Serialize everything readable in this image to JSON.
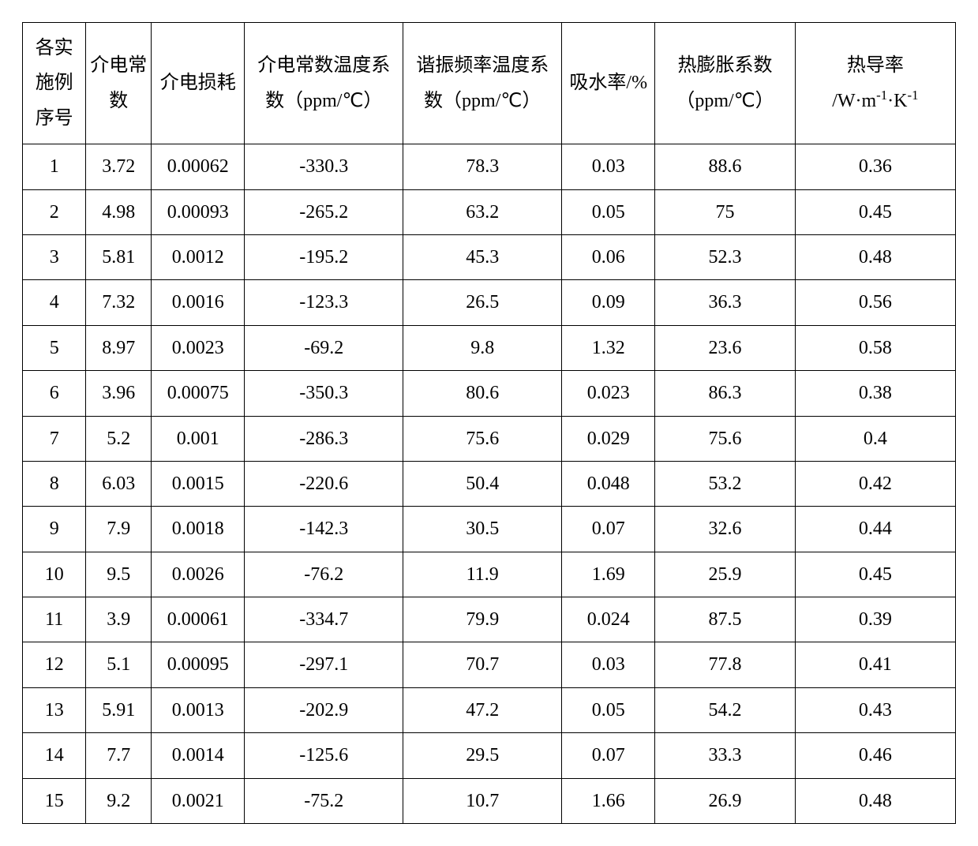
{
  "table": {
    "border_color": "#000000",
    "background_color": "#ffffff",
    "text_color": "#000000",
    "header_fontsize": 24,
    "cell_fontsize": 24,
    "column_widths_pct": [
      6.8,
      7.0,
      10.0,
      17.0,
      17.0,
      10.0,
      15.0,
      17.2
    ],
    "columns": [
      "各实施例序号",
      "介电常数",
      "介电损耗",
      "介电常数温度系数（ppm/℃）",
      "谐振频率温度系数（ppm/℃）",
      "吸水率/%",
      "热膨胀系数（ppm/℃）",
      "热导率/W·m⁻¹·K⁻¹"
    ],
    "rows": [
      [
        "1",
        "3.72",
        "0.00062",
        "-330.3",
        "78.3",
        "0.03",
        "88.6",
        "0.36"
      ],
      [
        "2",
        "4.98",
        "0.00093",
        "-265.2",
        "63.2",
        "0.05",
        "75",
        "0.45"
      ],
      [
        "3",
        "5.81",
        "0.0012",
        "-195.2",
        "45.3",
        "0.06",
        "52.3",
        "0.48"
      ],
      [
        "4",
        "7.32",
        "0.0016",
        "-123.3",
        "26.5",
        "0.09",
        "36.3",
        "0.56"
      ],
      [
        "5",
        "8.97",
        "0.0023",
        "-69.2",
        "9.8",
        "1.32",
        "23.6",
        "0.58"
      ],
      [
        "6",
        "3.96",
        "0.00075",
        "-350.3",
        "80.6",
        "0.023",
        "86.3",
        "0.38"
      ],
      [
        "7",
        "5.2",
        "0.001",
        "-286.3",
        "75.6",
        "0.029",
        "75.6",
        "0.4"
      ],
      [
        "8",
        "6.03",
        "0.0015",
        "-220.6",
        "50.4",
        "0.048",
        "53.2",
        "0.42"
      ],
      [
        "9",
        "7.9",
        "0.0018",
        "-142.3",
        "30.5",
        "0.07",
        "32.6",
        "0.44"
      ],
      [
        "10",
        "9.5",
        "0.0026",
        "-76.2",
        "11.9",
        "1.69",
        "25.9",
        "0.45"
      ],
      [
        "11",
        "3.9",
        "0.00061",
        "-334.7",
        "79.9",
        "0.024",
        "87.5",
        "0.39"
      ],
      [
        "12",
        "5.1",
        "0.00095",
        "-297.1",
        "70.7",
        "0.03",
        "77.8",
        "0.41"
      ],
      [
        "13",
        "5.91",
        "0.0013",
        "-202.9",
        "47.2",
        "0.05",
        "54.2",
        "0.43"
      ],
      [
        "14",
        "7.7",
        "0.0014",
        "-125.6",
        "29.5",
        "0.07",
        "33.3",
        "0.46"
      ],
      [
        "15",
        "9.2",
        "0.0021",
        "-75.2",
        "10.7",
        "1.66",
        "26.9",
        "0.48"
      ]
    ]
  }
}
